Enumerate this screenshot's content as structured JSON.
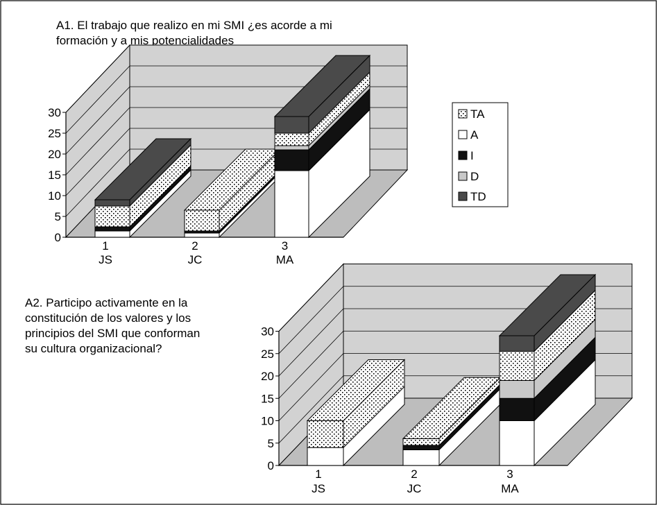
{
  "colors": {
    "TA": "#ffffff",
    "A": "#ffffff",
    "I": "#111111",
    "D": "#c8c8c8",
    "TD": "#4a4a4a",
    "wall": "#d2d2d2",
    "floor": "#bdbdbd",
    "frame": "#000000"
  },
  "legend": {
    "items": [
      {
        "key": "TA",
        "label": "TA"
      },
      {
        "key": "A",
        "label": "A"
      },
      {
        "key": "I",
        "label": "I"
      },
      {
        "key": "D",
        "label": "D"
      },
      {
        "key": "TD",
        "label": "TD"
      }
    ]
  },
  "chart_data": [
    {
      "type": "bar",
      "stacked": true,
      "three_d": true,
      "title_lines": [
        "A1. El trabajo que realizo en mi SMI ¿es acorde a mi",
        "formación y a mis potencialidades"
      ],
      "categories": [
        "1",
        "2",
        "3"
      ],
      "category_sublabels": [
        "JS",
        "JC",
        "MA"
      ],
      "ylim": [
        0,
        30
      ],
      "yticks": [
        0,
        5,
        10,
        15,
        20,
        25,
        30
      ],
      "legend_position": "right",
      "series": [
        {
          "name": "A",
          "values": [
            1.5,
            1,
            16
          ]
        },
        {
          "name": "I",
          "values": [
            1,
            0.5,
            5
          ]
        },
        {
          "name": "D",
          "values": [
            0,
            0,
            1
          ]
        },
        {
          "name": "TA",
          "values": [
            5,
            5,
            3
          ]
        },
        {
          "name": "TD",
          "values": [
            1.5,
            0,
            4
          ]
        }
      ]
    },
    {
      "type": "bar",
      "stacked": true,
      "three_d": true,
      "title_lines": [
        "A2. Participo activamente en la",
        "constitución de los valores y los",
        "principios del SMI que conforman",
        "su cultura organizacional?"
      ],
      "categories": [
        "1",
        "2",
        "3"
      ],
      "category_sublabels": [
        "JS",
        "JC",
        "MA"
      ],
      "ylim": [
        0,
        30
      ],
      "yticks": [
        0,
        5,
        10,
        15,
        20,
        25,
        30
      ],
      "series": [
        {
          "name": "A",
          "values": [
            4,
            3.5,
            10
          ]
        },
        {
          "name": "I",
          "values": [
            0,
            1,
            5
          ]
        },
        {
          "name": "D",
          "values": [
            0,
            0,
            4
          ]
        },
        {
          "name": "TA",
          "values": [
            6,
            1.5,
            6.5
          ]
        },
        {
          "name": "TD",
          "values": [
            0,
            0,
            3.5
          ]
        }
      ]
    }
  ]
}
